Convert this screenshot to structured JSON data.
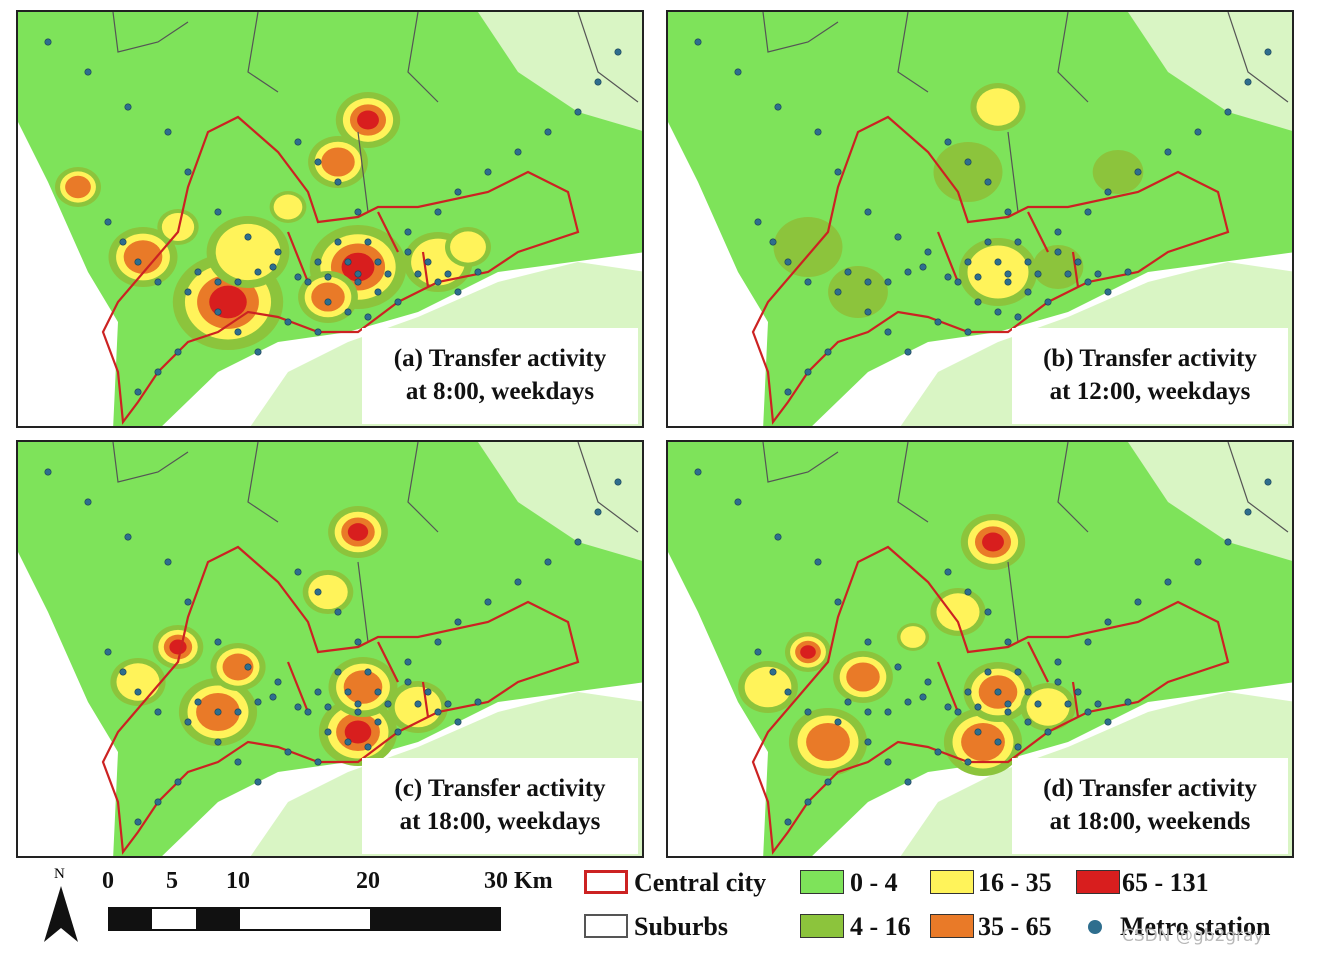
{
  "panels": [
    {
      "id": "a",
      "caption_line1": "(a) Transfer activity",
      "caption_line2": "at 8:00, weekdays"
    },
    {
      "id": "b",
      "caption_line1": "(b) Transfer activity",
      "caption_line2": "at 12:00, weekdays"
    },
    {
      "id": "c",
      "caption_line1": "(c) Transfer activity",
      "caption_line2": "at 18:00, weekdays"
    },
    {
      "id": "d",
      "caption_line1": "(d) Transfer activity",
      "caption_line2": "at 18:00, weekends"
    }
  ],
  "north_arrow": {
    "label": "N"
  },
  "scale_bar": {
    "ticks": [
      "0",
      "5",
      "10",
      "20",
      "30 Km"
    ]
  },
  "legend": {
    "central_city": "Central city",
    "suburbs": "Suburbs",
    "classes": [
      {
        "label": "0 - 4",
        "color": "#7ee35a"
      },
      {
        "label": "4 - 16",
        "color": "#8cc43c"
      },
      {
        "label": "16 - 35",
        "color": "#fff35a"
      },
      {
        "label": "35 - 65",
        "color": "#e97a28"
      },
      {
        "label": "65 - 131",
        "color": "#d81e1e"
      }
    ],
    "metro_station": "Metro station",
    "metro_color": "#2e6e8e"
  },
  "colors": {
    "land": "#7ee35a",
    "sea": "#ffffff",
    "hk_land": "#d9f5c4",
    "boundary": "#cc2222"
  },
  "watermark": "CSDN @gb2gray"
}
